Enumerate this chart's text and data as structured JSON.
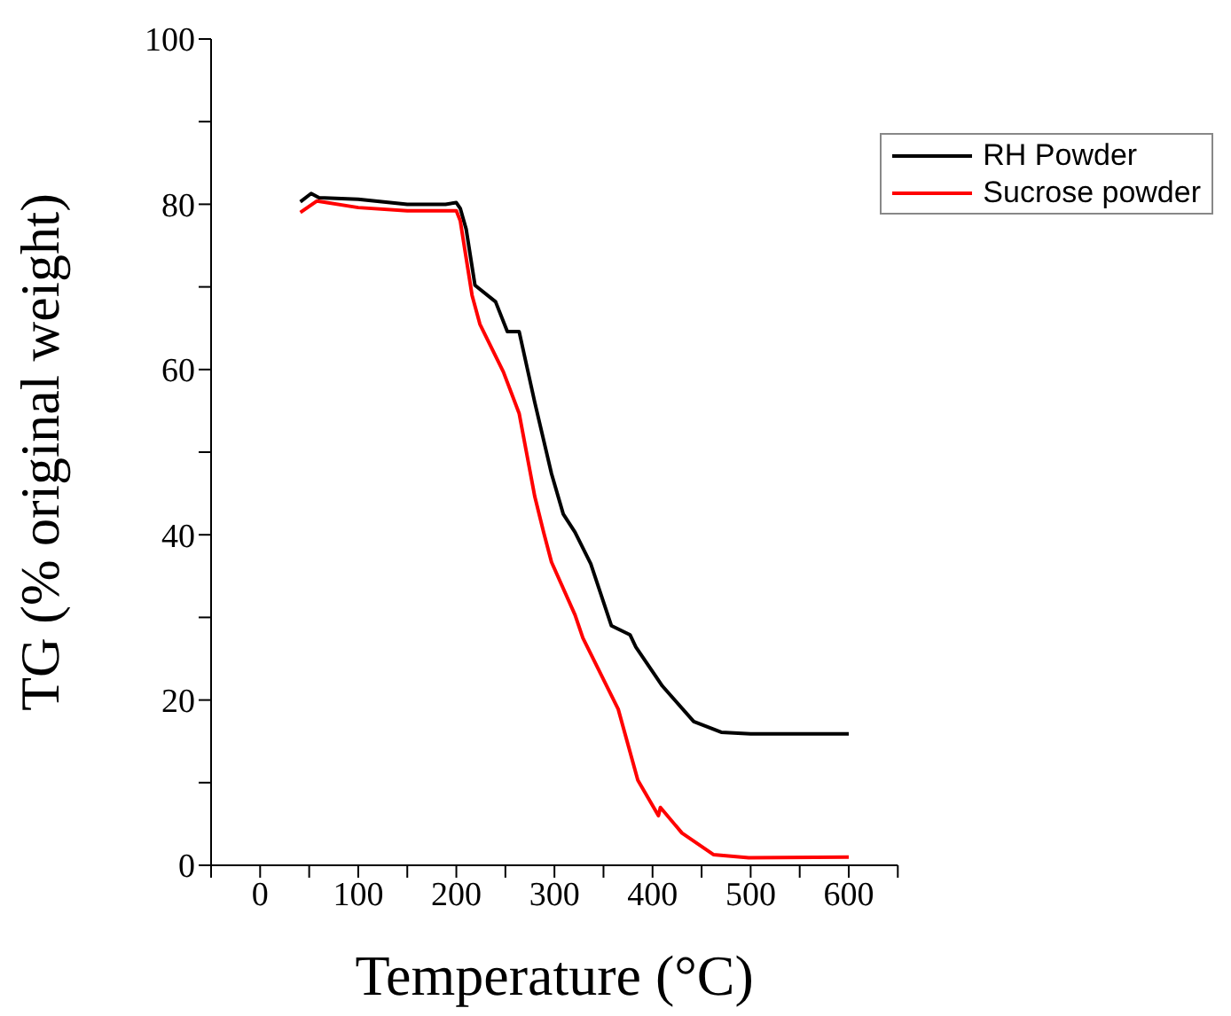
{
  "chart_data": {
    "type": "line",
    "xlabel": "Temperature (°C)",
    "ylabel": "TG (% original weight)",
    "xlim": [
      -50,
      650
    ],
    "xticks": [
      {
        "value": -50,
        "label": null
      },
      0,
      {
        "value": 50,
        "label": null
      },
      100,
      {
        "value": 150,
        "label": null
      },
      200,
      {
        "value": 250,
        "label": null
      },
      300,
      {
        "value": 350,
        "label": null
      },
      400,
      {
        "value": 450,
        "label": null
      },
      500,
      {
        "value": 550,
        "label": null
      },
      600,
      {
        "value": 650,
        "label": null
      }
    ],
    "ylim": [
      0,
      100
    ],
    "yticks": [
      0,
      {
        "value": 10,
        "label": null
      },
      20,
      {
        "value": 30,
        "label": null
      },
      40,
      {
        "value": 50,
        "label": null
      },
      60,
      {
        "value": 70,
        "label": null
      },
      80,
      {
        "value": 90,
        "label": null
      },
      100
    ],
    "legend": "top right",
    "grid": false,
    "marker": "none",
    "line_style": "solid",
    "series": [
      {
        "name": "RH Powder",
        "color": "#000000",
        "x": [
          41,
          52,
          60,
          100,
          150,
          189,
          200,
          204,
          210,
          219,
          240,
          252,
          264,
          280,
          297,
          309,
          321,
          337,
          358,
          377,
          383,
          410,
          442,
          470,
          500,
          600
        ],
        "values": [
          80.3,
          81.3,
          80.8,
          80.6,
          80.0,
          80.0,
          80.2,
          79.5,
          77,
          70.2,
          68.2,
          64.6,
          64.6,
          56,
          47.4,
          42.5,
          40.3,
          36.5,
          29,
          27.9,
          26.4,
          21.7,
          17.4,
          16.1,
          15.9,
          15.9
        ]
      },
      {
        "name": "Sucrose powder",
        "color": "#ff0000",
        "x": [
          41,
          58,
          100,
          150,
          200,
          204,
          216,
          224,
          248,
          264,
          280,
          289,
          297,
          321,
          329,
          365,
          385,
          406,
          408,
          430,
          462,
          498,
          600
        ],
        "values": [
          79,
          80.4,
          79.6,
          79.2,
          79.2,
          78,
          69,
          65.5,
          59.7,
          54.7,
          44.6,
          40.3,
          36.7,
          30.3,
          27.5,
          18.9,
          10.3,
          6,
          7,
          3.9,
          1.3,
          0.9,
          1.0
        ]
      }
    ]
  }
}
